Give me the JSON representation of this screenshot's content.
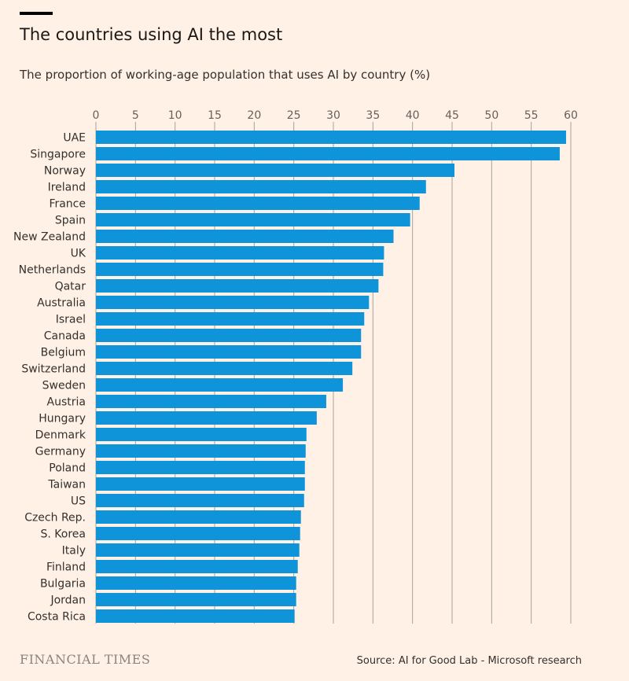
{
  "header": {
    "title": "The countries using AI the most",
    "subtitle": "The proportion of working-age population that uses AI by country (%)"
  },
  "footer": {
    "logo_text": "FINANCIAL TIMES",
    "source": "Source: AI for Good Lab - Microsoft research"
  },
  "colors": {
    "background": "#fff1e5",
    "bar": "#0f94d9",
    "grid": "#a8a29c",
    "axis_text": "#66605c",
    "label_text": "#33302e"
  },
  "chart_data": {
    "type": "bar",
    "orientation": "horizontal",
    "title": "The countries using AI the most",
    "subtitle": "The proportion of working-age population that uses AI by country (%)",
    "xlabel": "",
    "ylabel": "",
    "xlim": [
      0,
      60
    ],
    "ticks": [
      0,
      5,
      10,
      15,
      20,
      25,
      30,
      35,
      40,
      45,
      50,
      55,
      60
    ],
    "tick_labels": [
      "0",
      "5",
      "10",
      "15",
      "20",
      "25",
      "30",
      "35",
      "40",
      "45",
      "50",
      "55",
      "60"
    ],
    "grid": true,
    "axis_position": "top",
    "categories": [
      "UAE",
      "Singapore",
      "Norway",
      "Ireland",
      "France",
      "Spain",
      "New Zealand",
      "UK",
      "Netherlands",
      "Qatar",
      "Australia",
      "Israel",
      "Canada",
      "Belgium",
      "Switzerland",
      "Sweden",
      "Austria",
      "Hungary",
      "Denmark",
      "Germany",
      "Poland",
      "Taiwan",
      "US",
      "Czech Rep.",
      "S. Korea",
      "Italy",
      "Finland",
      "Bulgaria",
      "Jordan",
      "Costa Rica"
    ],
    "values": [
      59.4,
      58.6,
      45.3,
      41.7,
      40.9,
      39.7,
      37.6,
      36.4,
      36.3,
      35.7,
      34.5,
      33.9,
      33.5,
      33.5,
      32.4,
      31.2,
      29.1,
      27.9,
      26.6,
      26.5,
      26.4,
      26.4,
      26.3,
      25.9,
      25.8,
      25.7,
      25.5,
      25.3,
      25.3,
      25.1
    ]
  }
}
